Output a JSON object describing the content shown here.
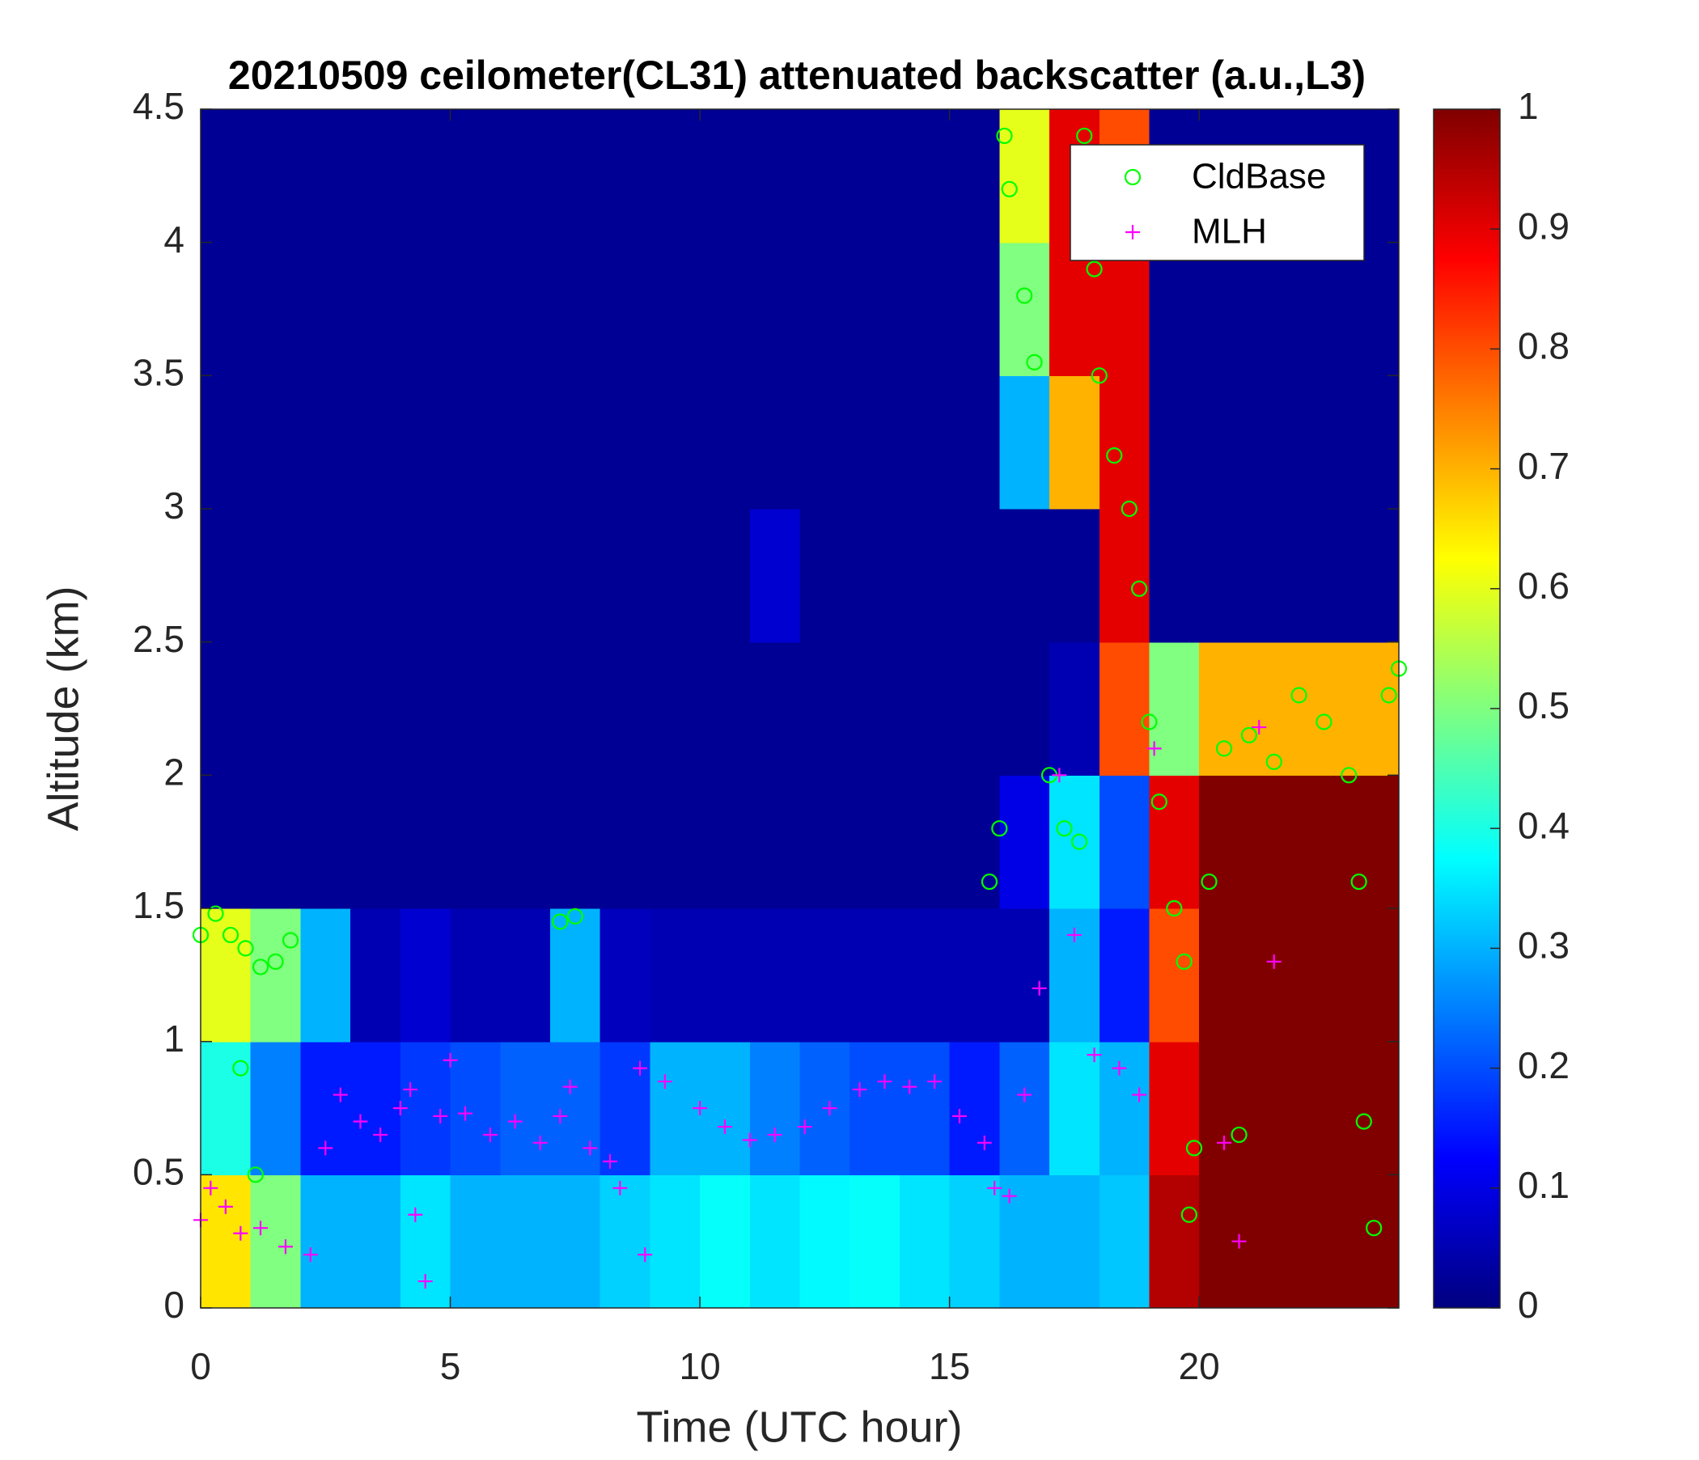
{
  "chart_data": {
    "type": "heatmap",
    "title": "20210509 ceilometer(CL31) attenuated backscatter (a.u.,L3)",
    "x_label": "Time (UTC hour)",
    "y_label": "Altitude (km)",
    "xlim": [
      0,
      24
    ],
    "xticks": [
      0,
      5,
      10,
      15,
      20
    ],
    "ylim": [
      0,
      4.5
    ],
    "yticks": [
      0,
      0.5,
      1,
      1.5,
      2,
      2.5,
      3,
      3.5,
      4,
      4.5
    ],
    "clim": [
      0,
      1
    ],
    "cticks": [
      0,
      0.1,
      0.2,
      0.3,
      0.4,
      0.5,
      0.6,
      0.7,
      0.8,
      0.9,
      1
    ],
    "colormap": "jet",
    "xbins": [
      0,
      1,
      2,
      3,
      4,
      5,
      6,
      7,
      8,
      9,
      10,
      11,
      12,
      13,
      14,
      15,
      16,
      17,
      18,
      19,
      20,
      21,
      22,
      23,
      24
    ],
    "ybins": [
      0,
      0.5,
      1,
      1.5,
      2,
      2.5,
      3,
      3.5,
      4,
      4.5
    ],
    "z": [
      [
        0.65,
        0.5,
        0.3,
        0.3,
        0.35,
        0.3,
        0.3,
        0.3,
        0.33,
        0.35,
        0.38,
        0.35,
        0.37,
        0.38,
        0.35,
        0.33,
        0.3,
        0.3,
        0.32,
        0.95,
        1,
        1,
        1,
        1
      ],
      [
        0.4,
        0.25,
        0.15,
        0.15,
        0.18,
        0.2,
        0.22,
        0.22,
        0.18,
        0.3,
        0.3,
        0.25,
        0.22,
        0.2,
        0.2,
        0.15,
        0.22,
        0.35,
        0.3,
        0.9,
        1,
        1,
        1,
        1
      ],
      [
        0.6,
        0.5,
        0.3,
        0.05,
        0.08,
        0.05,
        0.05,
        0.3,
        0.06,
        0.05,
        0.05,
        0.05,
        0.05,
        0.05,
        0.05,
        0.05,
        0.05,
        0.3,
        0.15,
        0.8,
        1,
        1,
        1,
        1
      ],
      [
        0.02,
        0.02,
        0.02,
        0.02,
        0.02,
        0.02,
        0.02,
        0.02,
        0.02,
        0.02,
        0.02,
        0.02,
        0.02,
        0.02,
        0.02,
        0.02,
        0.1,
        0.35,
        0.2,
        0.9,
        1,
        1,
        1,
        1
      ],
      [
        0.02,
        0.02,
        0.02,
        0.02,
        0.02,
        0.02,
        0.02,
        0.02,
        0.02,
        0.02,
        0.02,
        0.02,
        0.02,
        0.02,
        0.02,
        0.02,
        0.02,
        0.05,
        0.8,
        0.5,
        0.7,
        0.7,
        0.7,
        0.7
      ],
      [
        0.02,
        0.02,
        0.02,
        0.02,
        0.02,
        0.02,
        0.02,
        0.02,
        0.02,
        0.02,
        0.02,
        0.08,
        0.02,
        0.02,
        0.02,
        0.02,
        0.02,
        0.02,
        0.9,
        0.02,
        0.02,
        0.02,
        0.02,
        0.02
      ],
      [
        0.02,
        0.02,
        0.02,
        0.02,
        0.02,
        0.02,
        0.02,
        0.02,
        0.02,
        0.02,
        0.02,
        0.02,
        0.02,
        0.02,
        0.02,
        0.02,
        0.3,
        0.7,
        0.9,
        0.02,
        0.02,
        0.02,
        0.02,
        0.02
      ],
      [
        0.02,
        0.02,
        0.02,
        0.02,
        0.02,
        0.02,
        0.02,
        0.02,
        0.02,
        0.02,
        0.02,
        0.02,
        0.02,
        0.02,
        0.02,
        0.02,
        0.5,
        0.9,
        0.9,
        0.02,
        0.02,
        0.02,
        0.02,
        0.02
      ],
      [
        0.02,
        0.02,
        0.02,
        0.02,
        0.02,
        0.02,
        0.02,
        0.02,
        0.02,
        0.02,
        0.02,
        0.02,
        0.02,
        0.02,
        0.02,
        0.02,
        0.6,
        0.9,
        0.8,
        0.02,
        0.02,
        0.02,
        0.02,
        0.02
      ]
    ],
    "legend": "upper right",
    "series": [
      {
        "name": "CldBase",
        "color": "#00ff00",
        "marker": "o",
        "x": [
          0,
          0.3,
          0.6,
          0.9,
          1.2,
          1.5,
          1.8,
          0.8,
          1.1,
          7.2,
          7.5,
          15.8,
          16,
          16.1,
          16.2,
          16.5,
          16.7,
          17,
          17.3,
          17.6,
          17.7,
          17.9,
          18,
          18.3,
          18.6,
          18.8,
          19,
          19.2,
          19.5,
          19.7,
          19.9,
          20.2,
          20.5,
          21,
          21.5,
          22,
          22.5,
          23,
          23.2,
          23.3,
          23.5,
          23.8,
          24,
          20.8,
          19.8
        ],
        "values": [
          1.4,
          1.48,
          1.4,
          1.35,
          1.28,
          1.3,
          1.38,
          0.9,
          0.5,
          1.45,
          1.47,
          1.6,
          1.8,
          4.4,
          4.2,
          3.8,
          3.55,
          2.0,
          1.8,
          1.75,
          4.4,
          3.9,
          3.5,
          3.2,
          3.0,
          2.7,
          2.2,
          1.9,
          1.5,
          1.3,
          0.6,
          1.6,
          2.1,
          2.15,
          2.05,
          2.3,
          2.2,
          2.0,
          1.6,
          0.7,
          0.3,
          2.3,
          2.4,
          0.65,
          0.35
        ]
      },
      {
        "name": "MLH",
        "color": "#ff00ff",
        "marker": "+",
        "x": [
          0,
          0.2,
          0.5,
          0.8,
          1.2,
          1.7,
          2.2,
          2.5,
          2.8,
          3.2,
          3.6,
          4.0,
          4.2,
          4.3,
          4.5,
          4.8,
          5.0,
          5.3,
          5.8,
          6.3,
          6.8,
          7.2,
          7.4,
          7.8,
          8.2,
          8.4,
          8.8,
          8.9,
          9.3,
          10,
          10.5,
          11,
          11.5,
          12.1,
          12.6,
          13.2,
          13.7,
          14.2,
          14.7,
          15.2,
          15.7,
          15.9,
          16.2,
          16.5,
          16.8,
          17.2,
          17.5,
          17.9,
          18.4,
          18.8,
          19.1,
          20.8,
          21.2,
          20.5,
          21.5
        ],
        "values": [
          0.33,
          0.45,
          0.38,
          0.28,
          0.3,
          0.23,
          0.2,
          0.6,
          0.8,
          0.7,
          0.65,
          0.75,
          0.82,
          0.35,
          0.1,
          0.72,
          0.93,
          0.73,
          0.65,
          0.7,
          0.62,
          0.72,
          0.83,
          0.6,
          0.55,
          0.45,
          0.9,
          0.2,
          0.85,
          0.75,
          0.68,
          0.63,
          0.65,
          0.68,
          0.75,
          0.82,
          0.85,
          0.83,
          0.85,
          0.72,
          0.62,
          0.45,
          0.42,
          0.8,
          1.2,
          2.0,
          1.4,
          0.95,
          0.9,
          0.8,
          2.1,
          0.25,
          2.18,
          0.62,
          1.3
        ]
      }
    ]
  }
}
